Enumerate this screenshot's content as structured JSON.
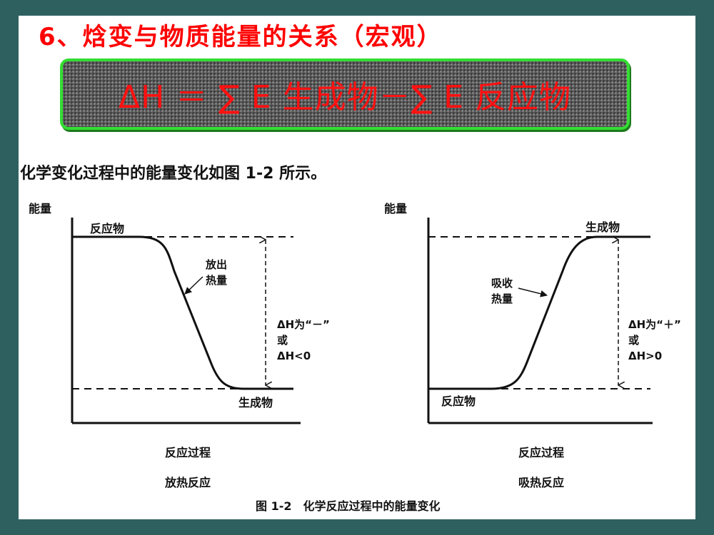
{
  "slide": {
    "title": "6、焓变与物质能量的关系（宏观）",
    "formula": "ΔH ＝ ∑ E 生成物－∑ E 反应物"
  },
  "scan": {
    "intro": "化学变化过程中的能量变化如图 1-2 所示。",
    "caption": "图 1-2　化学反应过程中的能量变化",
    "left_diagram": {
      "y_axis": "能量",
      "x_axis": "反应过程",
      "reactant": "反应物",
      "product": "生成物",
      "heat_line1": "放出",
      "heat_line2": "热量",
      "dh_line1": "ΔH为“－”",
      "dh_line2": "或",
      "dh_line3": "ΔH<0",
      "type": "放热反应"
    },
    "right_diagram": {
      "y_axis": "能量",
      "x_axis": "反应过程",
      "reactant": "反应物",
      "product": "生成物",
      "heat_line1": "吸收",
      "heat_line2": "热量",
      "dh_line1": "ΔH为“＋”",
      "dh_line2": "或",
      "dh_line3": "ΔH>0",
      "type": "吸热反应"
    }
  }
}
